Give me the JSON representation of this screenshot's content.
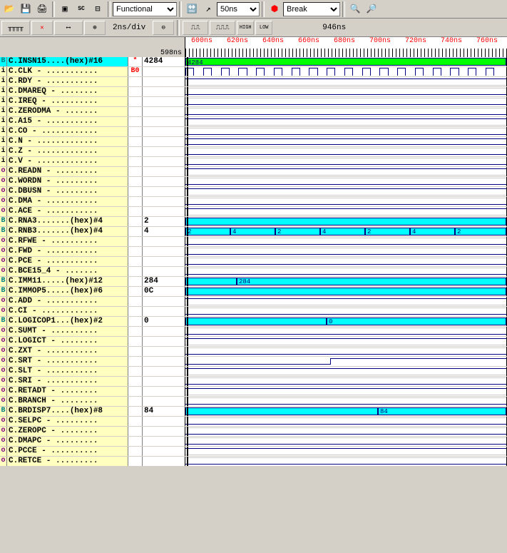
{
  "toolbar": {
    "mode_select": "Functional",
    "time_select": "50ns",
    "break_select": "Break"
  },
  "timebar": {
    "timediv": "2ns/div",
    "cursor_time": "946ns",
    "ruler_time": "598ns",
    "ticks": [
      "600ns",
      "620ns",
      "640ns",
      "660ns",
      "680ns",
      "700ns",
      "720ns",
      "740ns",
      "760ns"
    ]
  },
  "colors": {
    "signal_bg": "#ffffc0",
    "bus_cyan": "#00ffff",
    "bus_green": "#00ff00",
    "wave_line": "#000080"
  },
  "signals": [
    {
      "type": "B",
      "name": "C.INSN15....(hex)#16",
      "mark": "*",
      "markcls": "mark-red",
      "val": "4284",
      "wave": "bus-green",
      "label": "4284",
      "highlight": true
    },
    {
      "type": "i",
      "name": "C.CLK - ...........",
      "mark": "B0",
      "markcls": "mark-red",
      "val": "",
      "wave": "clock"
    },
    {
      "type": "i",
      "name": "C.RDY - ...........",
      "mark": "",
      "val": "",
      "wave": "high"
    },
    {
      "type": "i",
      "name": "C.DMAREQ - ........",
      "mark": "",
      "val": "",
      "wave": "low"
    },
    {
      "type": "i",
      "name": "C.IREQ - ..........",
      "mark": "",
      "val": "",
      "wave": "low"
    },
    {
      "type": "i",
      "name": "C.ZERODMA - .......",
      "mark": "",
      "val": "",
      "wave": "low"
    },
    {
      "type": "i",
      "name": "C.A15 - ...........",
      "mark": "",
      "val": "",
      "wave": "high"
    },
    {
      "type": "i",
      "name": "C.CO - ............",
      "mark": "",
      "val": "",
      "wave": "low"
    },
    {
      "type": "i",
      "name": "C.N - .............",
      "mark": "",
      "val": "",
      "wave": "both"
    },
    {
      "type": "i",
      "name": "C.Z - .............",
      "mark": "",
      "val": "",
      "wave": "low"
    },
    {
      "type": "i",
      "name": "C.V - .............",
      "mark": "",
      "val": "",
      "wave": "low"
    },
    {
      "type": "o",
      "name": "C.READN - .........",
      "mark": "",
      "val": "",
      "wave": "high"
    },
    {
      "type": "o",
      "name": "C.WORDN - .........",
      "mark": "",
      "val": "",
      "wave": "low"
    },
    {
      "type": "o",
      "name": "C.DBUSN - .........",
      "mark": "",
      "val": "",
      "wave": "high"
    },
    {
      "type": "o",
      "name": "C.DMA - ...........",
      "mark": "",
      "val": "",
      "wave": "low"
    },
    {
      "type": "o",
      "name": "C.ACE - ...........",
      "mark": "",
      "val": "",
      "wave": "high"
    },
    {
      "type": "B",
      "name": "C.RNA3.......(hex)#4",
      "mark": "",
      "val": "2",
      "wave": "bus",
      "label": ""
    },
    {
      "type": "B",
      "name": "C.RNB3.......(hex)#4",
      "mark": "",
      "val": "4",
      "wave": "bus-seg",
      "segs": [
        {
          "l": "2",
          "w": 14
        },
        {
          "l": "4",
          "w": 14
        },
        {
          "l": "2",
          "w": 14
        },
        {
          "l": "4",
          "w": 14
        },
        {
          "l": "2",
          "w": 14
        },
        {
          "l": "4",
          "w": 14
        },
        {
          "l": "2",
          "w": 16
        }
      ]
    },
    {
      "type": "o",
      "name": "C.RFWE - ..........",
      "mark": "",
      "val": "",
      "wave": "low"
    },
    {
      "type": "o",
      "name": "C.FWD - ...........",
      "mark": "",
      "val": "",
      "wave": "low"
    },
    {
      "type": "o",
      "name": "C.PCE - ...........",
      "mark": "",
      "val": "",
      "wave": "low"
    },
    {
      "type": "o",
      "name": "C.BCE15_4 - .......",
      "mark": "",
      "val": "",
      "wave": "low"
    },
    {
      "type": "B",
      "name": "C.IMM11.....(hex)#12",
      "mark": "",
      "val": "284",
      "wave": "bus-partial",
      "label": "284",
      "start": 16
    },
    {
      "type": "B",
      "name": "C.IMMOP5.....(hex)#6",
      "mark": "",
      "val": "0C",
      "wave": "bus",
      "label": ""
    },
    {
      "type": "o",
      "name": "C.ADD - ...........",
      "mark": "",
      "val": "",
      "wave": "high"
    },
    {
      "type": "o",
      "name": "C.CI - ............",
      "mark": "",
      "val": "",
      "wave": "low"
    },
    {
      "type": "B",
      "name": "C.LOGICOP1...(hex)#2",
      "mark": "",
      "val": "0",
      "wave": "bus-partial",
      "label": "0",
      "start": 44
    },
    {
      "type": "o",
      "name": "C.SUMT - ..........",
      "mark": "",
      "val": "",
      "wave": "low"
    },
    {
      "type": "o",
      "name": "C.LOGICT - ........",
      "mark": "",
      "val": "",
      "wave": "high"
    },
    {
      "type": "o",
      "name": "C.ZXT - ...........",
      "mark": "",
      "val": "",
      "wave": "low"
    },
    {
      "type": "o",
      "name": "C.SRT - ...........",
      "mark": "",
      "val": "",
      "wave": "step"
    },
    {
      "type": "o",
      "name": "C.SLT - ...........",
      "mark": "",
      "val": "",
      "wave": "high"
    },
    {
      "type": "o",
      "name": "C.SRI - ...........",
      "mark": "",
      "val": "",
      "wave": "low"
    },
    {
      "type": "o",
      "name": "C.RETADT - ........",
      "mark": "",
      "val": "",
      "wave": "high"
    },
    {
      "type": "o",
      "name": "C.BRANCH - ........",
      "mark": "",
      "val": "",
      "wave": "low"
    },
    {
      "type": "B",
      "name": "C.BRDISP7....(hex)#8",
      "mark": "",
      "val": "84",
      "wave": "bus-partial",
      "label": "84",
      "start": 60
    },
    {
      "type": "o",
      "name": "C.SELPC - .........",
      "mark": "",
      "val": "",
      "wave": "low"
    },
    {
      "type": "o",
      "name": "C.ZEROPC - ........",
      "mark": "",
      "val": "",
      "wave": "low"
    },
    {
      "type": "o",
      "name": "C.DMAPC - .........",
      "mark": "",
      "val": "",
      "wave": "low"
    },
    {
      "type": "o",
      "name": "C.PCCE - ..........",
      "mark": "",
      "val": "",
      "wave": "high"
    },
    {
      "type": "o",
      "name": "C.RETCE - .........",
      "mark": "",
      "val": "",
      "wave": "low"
    }
  ]
}
